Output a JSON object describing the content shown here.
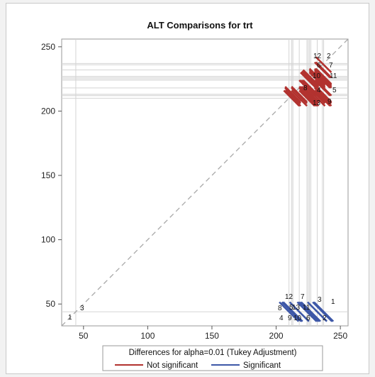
{
  "chart_data": {
    "type": "scatter",
    "subtype": "lsmeans diffogram",
    "title": "ALT Comparisons for trt",
    "xlim": [
      33,
      256
    ],
    "ylim": [
      33,
      256
    ],
    "x_ticks": [
      50,
      100,
      150,
      200,
      250
    ],
    "y_ticks": [
      50,
      100,
      150,
      200,
      250
    ],
    "grid": false,
    "reference_line": "diagonal dashed y = x",
    "levels": [
      {
        "level": "1",
        "mean": 236
      },
      {
        "level": "2",
        "mean": 237
      },
      {
        "level": "3",
        "mean": 44
      },
      {
        "level": "4",
        "mean": 210
      },
      {
        "level": "5",
        "mean": 212
      },
      {
        "level": "6",
        "mean": 226
      },
      {
        "level": "7",
        "mean": 227
      },
      {
        "level": "8",
        "mean": 213
      },
      {
        "level": "9",
        "mean": 213
      },
      {
        "level": "10",
        "mean": 224
      },
      {
        "level": "11",
        "mean": 225
      },
      {
        "level": "12",
        "mean": 232
      },
      {
        "level": "13",
        "mean": 218
      }
    ],
    "legend": {
      "title": "Differences for alpha=0.01 (Tukey Adjustment)",
      "position": "bottom",
      "entries": [
        {
          "label": "Not significant",
          "color": "#b2322f"
        },
        {
          "label": "Significant",
          "color": "#3d57a7"
        }
      ]
    }
  }
}
